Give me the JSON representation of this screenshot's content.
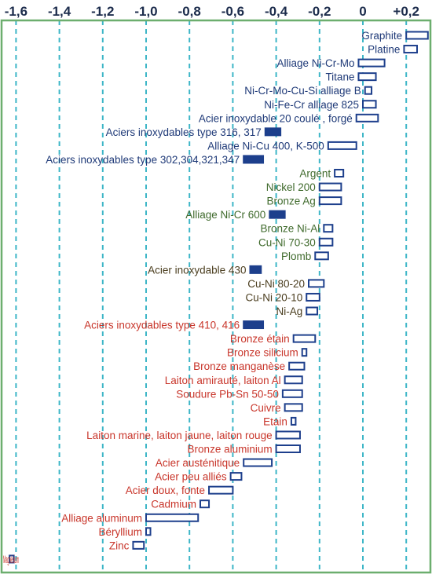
{
  "chart_data": {
    "type": "bar",
    "orientation": "horizontal",
    "grid": true,
    "xlim": [
      -1.65,
      0.3
    ],
    "x_ticks": [
      -1.6,
      -1.4,
      -1.2,
      -1.0,
      -0.8,
      -0.6,
      -0.4,
      -0.2,
      0,
      0.2
    ],
    "x_tick_labels": [
      "-1,6",
      "-1,4",
      "-1,2",
      "-1,0",
      "-0,8",
      "-0,6",
      "-0,4",
      "-0,2",
      "0",
      "+0,2"
    ],
    "colors": {
      "frame": "#6cae6e",
      "gridline": "#3db6c7",
      "bar_outline": "#1d3f8c",
      "filled_bar": "#1d3f8c",
      "noble_label": "#1f3a78",
      "middle_label": "#3f6a2c",
      "stainless_label": "#4a3d1e",
      "active_label": "#c8352a"
    },
    "rows": [
      {
        "label": "Graphite",
        "start": 0.2,
        "end": 0.3,
        "filled": false,
        "color": "#1f3a78"
      },
      {
        "label": "Platine",
        "start": 0.19,
        "end": 0.25,
        "filled": false,
        "color": "#1f3a78"
      },
      {
        "label": "Alliage Ni-Cr-Mo",
        "start": -0.02,
        "end": 0.1,
        "filled": false,
        "color": "#1f3a78"
      },
      {
        "label": "Titane",
        "start": -0.02,
        "end": 0.06,
        "filled": false,
        "color": "#1f3a78"
      },
      {
        "label": "Ni-Cr-Mo-Cu-Si alliage B",
        "start": 0.01,
        "end": 0.04,
        "filled": false,
        "color": "#1f3a78"
      },
      {
        "label": "Ni-Fe-Cr alliage 825",
        "start": 0.0,
        "end": 0.06,
        "filled": false,
        "color": "#1f3a78"
      },
      {
        "label": "Acier inoxydable 20 coulé ,  forgé",
        "start": -0.03,
        "end": 0.07,
        "filled": false,
        "color": "#1f3a78"
      },
      {
        "label": "Aciers inoxydables type 316, 317",
        "start": -0.45,
        "end": -0.38,
        "filled": true,
        "color": "#1f3a78"
      },
      {
        "label": "Alliage Ni-Cu 400, K-500",
        "start": -0.16,
        "end": -0.03,
        "filled": false,
        "color": "#1f3a78"
      },
      {
        "label": "Aciers inoxydables type 302,304,321,347",
        "start": -0.55,
        "end": -0.46,
        "filled": true,
        "color": "#1f3a78"
      },
      {
        "label": "Argent",
        "start": -0.13,
        "end": -0.09,
        "filled": false,
        "color": "#3f6a2c"
      },
      {
        "label": "Nickel 200",
        "start": -0.2,
        "end": -0.1,
        "filled": false,
        "color": "#3f6a2c"
      },
      {
        "label": "Bronze Ag",
        "start": -0.2,
        "end": -0.1,
        "filled": false,
        "color": "#3f6a2c"
      },
      {
        "label": "Alliage Ni-Cr 600",
        "start": -0.43,
        "end": -0.36,
        "filled": true,
        "color": "#3f6a2c"
      },
      {
        "label": "Bronze Ni-Al",
        "start": -0.18,
        "end": -0.14,
        "filled": false,
        "color": "#3f6a2c"
      },
      {
        "label": "Cu-Ni 70-30",
        "start": -0.2,
        "end": -0.14,
        "filled": false,
        "color": "#3f6a2c"
      },
      {
        "label": "Plomb",
        "start": -0.22,
        "end": -0.16,
        "filled": false,
        "color": "#3f6a2c"
      },
      {
        "label": "Acier inoxydable   430",
        "start": -0.52,
        "end": -0.47,
        "filled": true,
        "color": "#4a3d1e"
      },
      {
        "label": "Cu-Ni 80-20",
        "start": -0.25,
        "end": -0.18,
        "filled": false,
        "color": "#4a3d1e"
      },
      {
        "label": "Cu-Ni 20-10",
        "start": -0.26,
        "end": -0.2,
        "filled": false,
        "color": "#4a3d1e"
      },
      {
        "label": "Ni-Ag",
        "start": -0.26,
        "end": -0.21,
        "filled": false,
        "color": "#4a3d1e"
      },
      {
        "label": "Aciers inoxydables type 410, 416",
        "start": -0.55,
        "end": -0.46,
        "filled": true,
        "color": "#c8352a"
      },
      {
        "label": "Bronze étain",
        "start": -0.32,
        "end": -0.22,
        "filled": false,
        "color": "#c8352a"
      },
      {
        "label": "Bronze silicium",
        "start": -0.28,
        "end": -0.26,
        "filled": false,
        "color": "#c8352a"
      },
      {
        "label": "Bronze manganèse",
        "start": -0.34,
        "end": -0.27,
        "filled": false,
        "color": "#c8352a"
      },
      {
        "label": "Laiton amirauté, laiton Al",
        "start": -0.36,
        "end": -0.28,
        "filled": false,
        "color": "#c8352a"
      },
      {
        "label": "Soudure Pb-Sn 50-50",
        "start": -0.37,
        "end": -0.28,
        "filled": false,
        "color": "#c8352a"
      },
      {
        "label": "Cuivre",
        "start": -0.36,
        "end": -0.28,
        "filled": false,
        "color": "#c8352a"
      },
      {
        "label": "Etain",
        "start": -0.33,
        "end": -0.31,
        "filled": false,
        "color": "#c8352a"
      },
      {
        "label": "Laiton marine, laiton jaune, laiton rouge",
        "start": -0.4,
        "end": -0.29,
        "filled": false,
        "color": "#c8352a"
      },
      {
        "label": "Bronze aluminium",
        "start": -0.4,
        "end": -0.29,
        "filled": false,
        "color": "#c8352a"
      },
      {
        "label": "Acier austénitique",
        "start": -0.55,
        "end": -0.42,
        "filled": false,
        "color": "#c8352a"
      },
      {
        "label": "Acier peu alliés",
        "start": -0.61,
        "end": -0.56,
        "filled": false,
        "color": "#c8352a"
      },
      {
        "label": "Acier doux, fonte",
        "start": -0.71,
        "end": -0.6,
        "filled": false,
        "color": "#c8352a"
      },
      {
        "label": "Cadmium",
        "start": -0.75,
        "end": -0.71,
        "filled": false,
        "color": "#c8352a"
      },
      {
        "label": "Alliage aluminum",
        "start": -1.0,
        "end": -0.76,
        "filled": false,
        "color": "#c8352a"
      },
      {
        "label": "Béryllium",
        "start": -1.0,
        "end": -0.98,
        "filled": false,
        "color": "#c8352a"
      },
      {
        "label": "Zinc",
        "start": -1.06,
        "end": -1.01,
        "filled": false,
        "color": "#c8352a"
      },
      {
        "label": "Magnésium",
        "start": -1.63,
        "end": -1.61,
        "filled": false,
        "color": "#c8352a"
      }
    ]
  }
}
